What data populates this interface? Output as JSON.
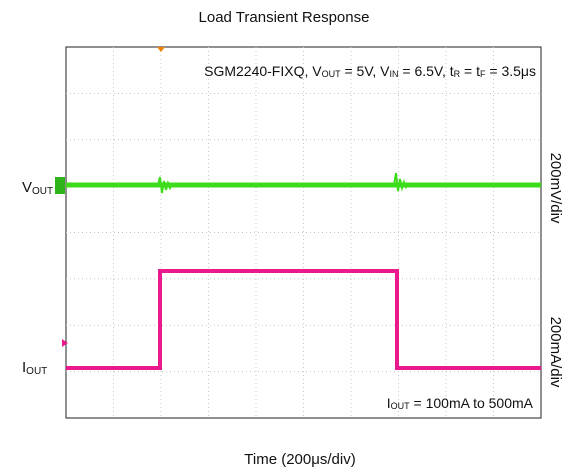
{
  "title": "Load Transient Response",
  "annotation": [
    "SGM2240-FIXQ, V",
    "OUT",
    " = 5V, V",
    "IN",
    " = 6.5V, t",
    "R",
    " = t",
    "F",
    " = 3.5μs"
  ],
  "vout_label": [
    "V",
    "OUT"
  ],
  "iout_label": [
    "I",
    "OUT"
  ],
  "vout_scale": "200mV/div",
  "iout_scale": "200mA/div",
  "current_note": [
    "I",
    "OUT",
    " = 100mA to 500mA"
  ],
  "x_label": "Time (200μs/div)"
}
